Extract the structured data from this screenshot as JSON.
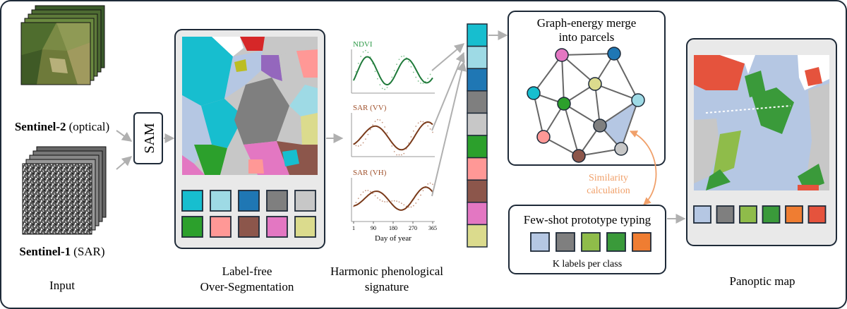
{
  "input": {
    "s2_bold": "Sentinel-2",
    "s2_rest": "(optical)",
    "s1_bold": "Sentinel-1",
    "s1_rest": "(SAR)",
    "caption": "Input"
  },
  "sam": {
    "label": "SAM"
  },
  "segmentation": {
    "caption_line1": "Label-free",
    "caption_line2": "Over-Segmentation"
  },
  "signature": {
    "plots": [
      {
        "label": "NDVI",
        "color": "#2e9a48"
      },
      {
        "label": "SAR (VV)",
        "color": "#a0522d"
      },
      {
        "label": "SAR (VH)",
        "color": "#a0522d"
      }
    ],
    "x_ticks": [
      "1",
      "90",
      "180",
      "270",
      "365"
    ],
    "x_label": "Day of year",
    "caption_line1": "Harmonic phenological",
    "caption_line2": "signature"
  },
  "graph": {
    "title_line1": "Graph-energy merge",
    "title_line2": "into parcels"
  },
  "similarity": {
    "line1": "Similarity",
    "line2": "calculation",
    "color": "#f0a06a"
  },
  "prototype": {
    "title": "Few-shot prototype typing",
    "subtitle": "K labels per class"
  },
  "output": {
    "caption": "Panoptic map"
  },
  "palette": {
    "cyan": "#17becf",
    "light_blue": "#9edae5",
    "blue": "#1f77b4",
    "gray": "#7f7f7f",
    "light_gray": "#c7c7c7",
    "green": "#2ca02c",
    "salmon": "#ff9896",
    "brown": "#8c564b",
    "pink": "#e377c2",
    "khaki": "#dbdb8d",
    "periwinkle": "#b5c7e3",
    "lime": "#8fbc4a",
    "forest": "#3a9a3a",
    "orange": "#ef7d32",
    "red": "#e5533d"
  }
}
